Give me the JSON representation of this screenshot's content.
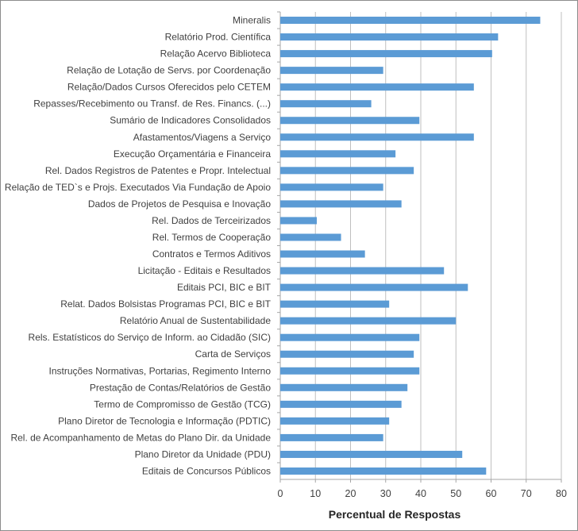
{
  "chart_data": {
    "type": "bar",
    "orientation": "horizontal",
    "title": "",
    "xlabel": "Percentual de Respostas",
    "ylabel": "",
    "xlim": [
      0,
      80
    ],
    "xticks": [
      "0",
      "10",
      "20",
      "30",
      "40",
      "50",
      "60",
      "70",
      "80"
    ],
    "grid": true,
    "bar_color": "#5B9BD5",
    "categories": [
      "Mineralis",
      "Relatório Prod. Científica",
      "Relação Acervo Biblioteca",
      "Relação de Lotação de Servs. por Coordenação",
      "Relação/Dados Cursos Oferecidos pelo CETEM",
      "Repasses/Recebimento ou Transf. de Res. Financs. (...)",
      "Sumário de Indicadores Consolidados",
      "Afastamentos/Viagens a Serviço",
      "Execução Orçamentária e Financeira",
      "Rel. Dados Registros de Patentes e Propr. Intelectual",
      "Relação de TED`s e Projs. Executados Via Fundação de Apoio",
      "Dados de Projetos de Pesquisa e Inovação",
      "Rel. Dados de Terceirizados",
      "Rel. Termos de Cooperação",
      "Contratos e Termos Aditivos",
      "Licitação - Editais e Resultados",
      "Editais PCI, BIC e BIT",
      "Relat. Dados Bolsistas Programas PCI, BIC e BIT",
      "Relatório Anual de Sustentabilidade",
      "Rels. Estatísticos do Serviço de Inform. ao Cidadão (SIC)",
      "Carta de Serviços",
      "Instruções Normativas, Portarias, Regimento Interno",
      "Prestação de Contas/Relatórios de Gestão",
      "Termo de Compromisso de Gestão (TCG)",
      "Plano Diretor de Tecnologia e Informação (PDTIC)",
      "Rel. de Acompanhamento de Metas do Plano Dir. da Unidade",
      "Plano Diretor da Unidade (PDU)",
      "Editais de Concursos Públicos"
    ],
    "values": [
      74.0,
      62.0,
      60.3,
      29.3,
      55.1,
      25.9,
      39.6,
      55.1,
      32.8,
      38.0,
      29.3,
      34.5,
      10.4,
      17.3,
      24.1,
      46.6,
      53.4,
      31.0,
      50.0,
      39.6,
      38.0,
      39.6,
      36.2,
      34.5,
      31.0,
      29.3,
      51.8,
      58.6
    ]
  }
}
